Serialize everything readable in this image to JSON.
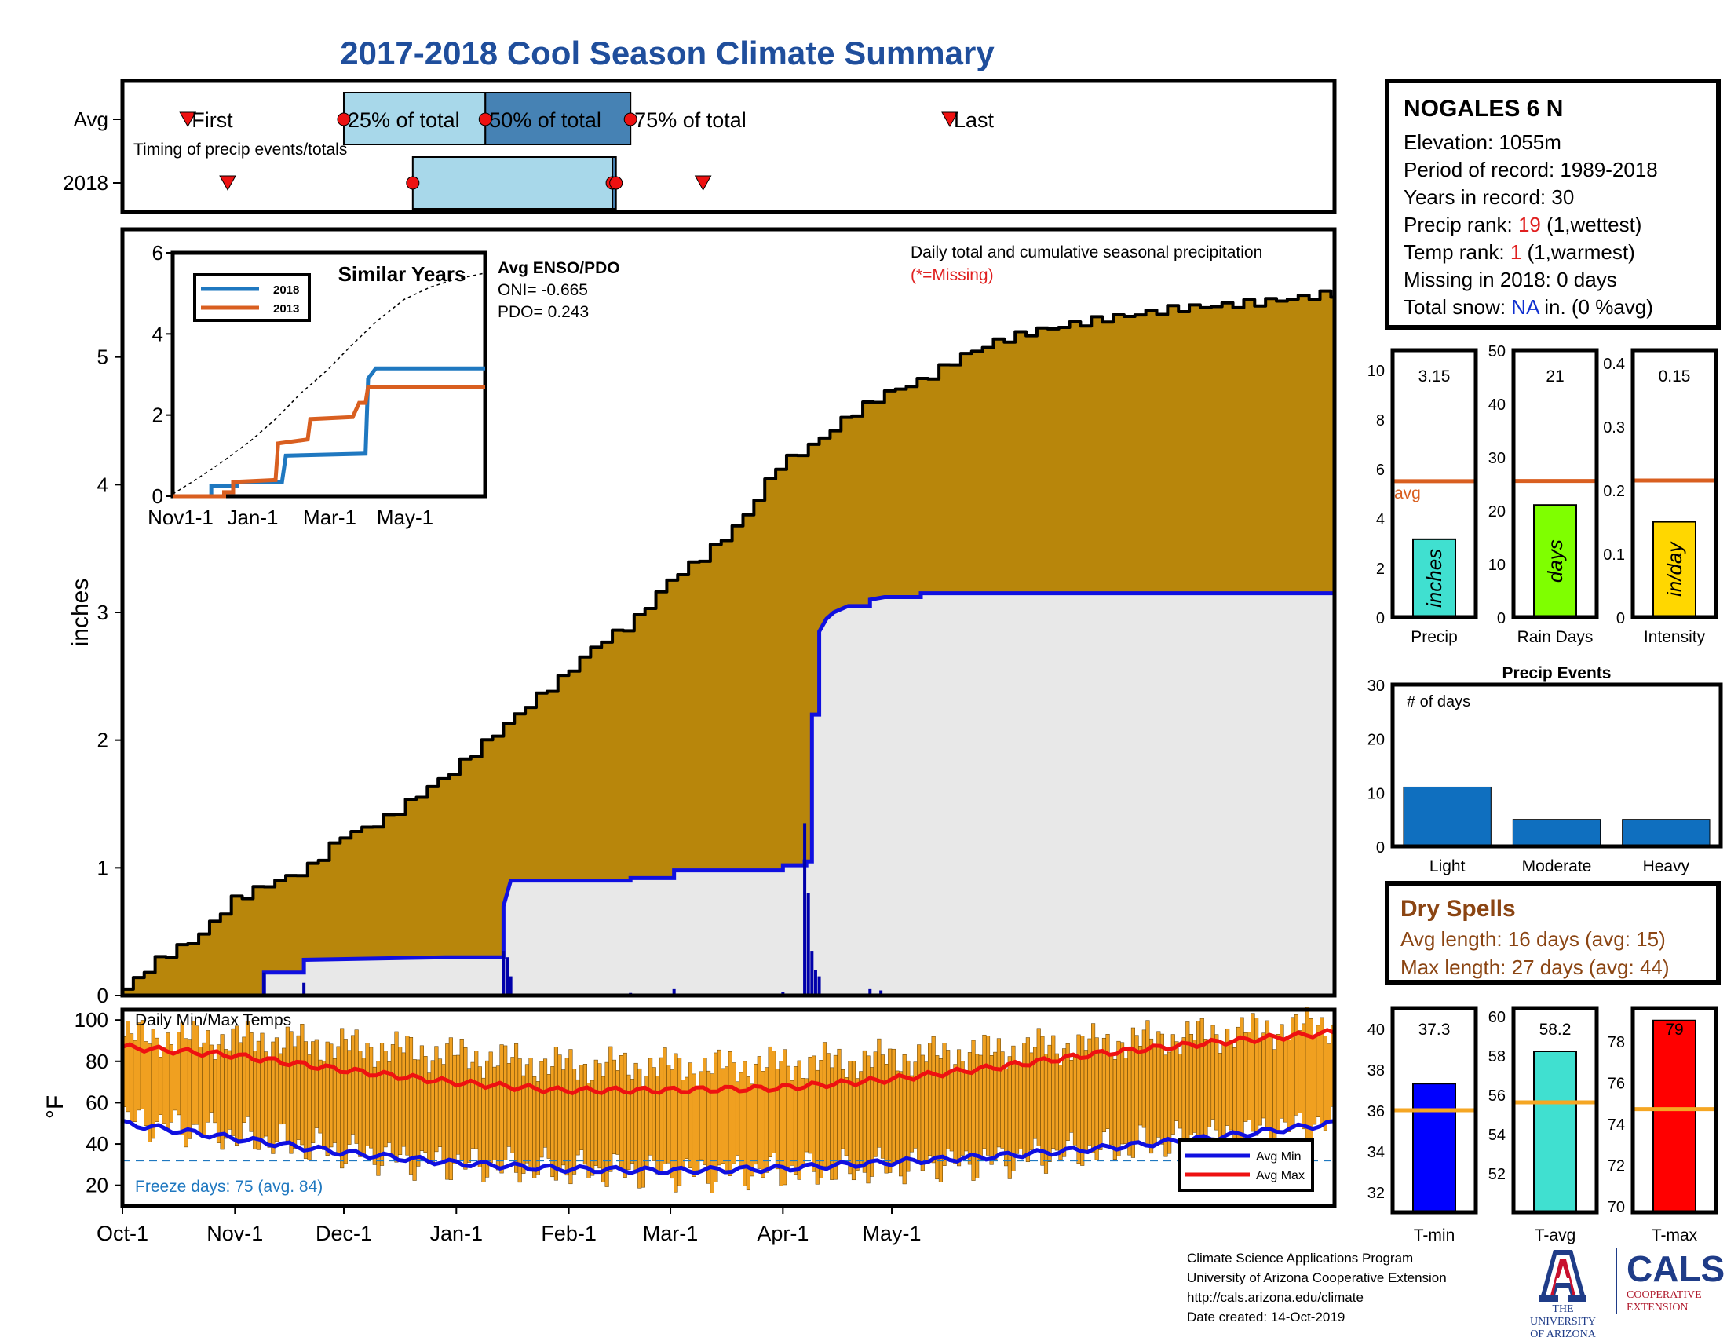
{
  "title": "2017-2018 Cool Season Climate Summary",
  "station": {
    "name": "NOGALES 6 N",
    "elevation": "Elevation: 1055m",
    "period": "Period of record: 1989-2018",
    "years": "Years in record: 30",
    "precip_rank_label": "Precip rank: ",
    "precip_rank_value": "19",
    "precip_rank_note": " (1,wettest)",
    "temp_rank_label": "Temp rank: ",
    "temp_rank_value": "1",
    "temp_rank_note": " (1,warmest)",
    "missing": "Missing in 2018: 0 days",
    "snow_label": "Total snow: ",
    "snow_value": "NA",
    "snow_note": " in. (0 %avg)"
  },
  "dry_spells": {
    "title": "Dry Spells",
    "avg": "Avg length: 16 days (avg: 15)",
    "max": "Max length: 27 days (avg: 44)"
  },
  "footer": {
    "line1": "Climate Science Applications Program",
    "line2": "University of Arizona Cooperative Extension",
    "line3": "http://cals.arizona.edu/climate",
    "line4": " Date created: 14-Oct-2019"
  },
  "logos": {
    "ua_text1": "THE UNIVERSITY",
    "ua_text2": "OF ARIZONA",
    "ua_icon": "university-of-arizona-block-a",
    "cals_name": "CALS",
    "cals_sub1": "COOPERATIVE",
    "cals_sub2": "EXTENSION"
  },
  "colors": {
    "cumulative_fill": "#b8860b",
    "daily_fill": "#e8e8e8",
    "seasonal_line": "#1010e0",
    "temp_bar": "#f0a020",
    "avg_min": "#1010e0",
    "avg_max": "#ee1111",
    "freeze_line": "#1f78c0",
    "line_2018": "#1f78c0",
    "line_2013": "#d95f20",
    "avg_line": "#d95f20",
    "event_bar": "#0f6fbf"
  },
  "chart_data": [
    {
      "id": "timing",
      "type": "timeline",
      "row_labels": [
        "Avg",
        "2018"
      ],
      "note": "Timing of precip events/totals",
      "avg": {
        "first": "Oct-19",
        "p25": "Dec-1",
        "p50": "Jan-9",
        "p75": "Feb-18",
        "last": "May-17"
      },
      "y2018": {
        "first": "Oct-30",
        "p25": "Dec-20",
        "p50": "Feb-13",
        "p75": "Feb-14",
        "last": "Mar-10"
      },
      "avg_labels": [
        "First",
        "25% of total",
        "50% of total",
        "75% of total",
        "Last"
      ]
    },
    {
      "id": "precipitation",
      "type": "area",
      "title": "Daily total and cumulative seasonal precipitation",
      "subtitle": "(*=Missing)",
      "ylabel": "inches",
      "ylim": [
        0,
        6
      ],
      "yticks": [
        0,
        1,
        2,
        3,
        4,
        5
      ],
      "xticks": [
        "Oct-1",
        "Nov-1",
        "Dec-1",
        "Jan-1",
        "Feb-1",
        "Mar-1",
        "Apr-1",
        "May-1"
      ],
      "avg_cumulative": [
        [
          0,
          0.05
        ],
        [
          5,
          0.18
        ],
        [
          10,
          0.3
        ],
        [
          20,
          0.45
        ],
        [
          30,
          0.75
        ],
        [
          40,
          0.88
        ],
        [
          50,
          0.98
        ],
        [
          60,
          1.25
        ],
        [
          70,
          1.35
        ],
        [
          80,
          1.55
        ],
        [
          90,
          1.75
        ],
        [
          100,
          2.0
        ],
        [
          110,
          2.25
        ],
        [
          120,
          2.48
        ],
        [
          130,
          2.75
        ],
        [
          140,
          2.92
        ],
        [
          150,
          3.25
        ],
        [
          160,
          3.45
        ],
        [
          170,
          3.72
        ],
        [
          180,
          4.15
        ],
        [
          190,
          4.32
        ],
        [
          200,
          4.55
        ],
        [
          210,
          4.72
        ],
        [
          220,
          4.82
        ],
        [
          230,
          5.0
        ],
        [
          240,
          5.12
        ],
        [
          250,
          5.2
        ],
        [
          260,
          5.25
        ],
        [
          270,
          5.3
        ],
        [
          290,
          5.38
        ],
        [
          310,
          5.42
        ],
        [
          334,
          5.5
        ]
      ],
      "seasonal_2018": [
        [
          0,
          0
        ],
        [
          39,
          0
        ],
        [
          39,
          0.18
        ],
        [
          50,
          0.18
        ],
        [
          50,
          0.28
        ],
        [
          89,
          0.3
        ],
        [
          105,
          0.3
        ],
        [
          105,
          0.7
        ],
        [
          107,
          0.9
        ],
        [
          140,
          0.9
        ],
        [
          140,
          0.92
        ],
        [
          152,
          0.92
        ],
        [
          152,
          0.98
        ],
        [
          182,
          0.98
        ],
        [
          182,
          1.02
        ],
        [
          189,
          1.02
        ],
        [
          189,
          1.02
        ],
        [
          189,
          1.02
        ],
        [
          188,
          1.02
        ],
        [
          188,
          1.05
        ],
        [
          190,
          1.05
        ],
        [
          190,
          2.2
        ],
        [
          192,
          2.2
        ],
        [
          192,
          2.85
        ],
        [
          194,
          2.95
        ],
        [
          196,
          3.0
        ],
        [
          200,
          3.05
        ],
        [
          206,
          3.05
        ],
        [
          206,
          3.1
        ],
        [
          210,
          3.12
        ],
        [
          220,
          3.12
        ],
        [
          220,
          3.15
        ],
        [
          334,
          3.15
        ]
      ],
      "daily_2018": [
        [
          39,
          0.18
        ],
        [
          50,
          0.1
        ],
        [
          105,
          0.35
        ],
        [
          106,
          0.3
        ],
        [
          107,
          0.15
        ],
        [
          140,
          0.02
        ],
        [
          152,
          0.05
        ],
        [
          182,
          0.03
        ],
        [
          188,
          1.35
        ],
        [
          189,
          0.8
        ],
        [
          190,
          0.35
        ],
        [
          191,
          0.2
        ],
        [
          192,
          0.15
        ],
        [
          206,
          0.05
        ],
        [
          209,
          0.04
        ]
      ]
    },
    {
      "id": "similar_years",
      "type": "line",
      "title": "Similar Years",
      "ylim": [
        0,
        6
      ],
      "yticks": [
        0,
        2,
        4,
        6
      ],
      "xticks": [
        "Nov1-1",
        "Jan-1",
        "Mar-1",
        "May-1"
      ],
      "series": [
        {
          "name": "2018",
          "points": [
            [
              0,
              0
            ],
            [
              30,
              0
            ],
            [
              30,
              0.25
            ],
            [
              50,
              0.25
            ],
            [
              50,
              0.35
            ],
            [
              85,
              0.35
            ],
            [
              88,
              1.0
            ],
            [
              150,
              1.05
            ],
            [
              152,
              2.9
            ],
            [
              158,
              3.15
            ],
            [
              243,
              3.15
            ]
          ]
        },
        {
          "name": "2013",
          "points": [
            [
              0,
              0
            ],
            [
              40,
              0
            ],
            [
              40,
              0.1
            ],
            [
              47,
              0.1
            ],
            [
              47,
              0.35
            ],
            [
              80,
              0.4
            ],
            [
              82,
              1.3
            ],
            [
              105,
              1.4
            ],
            [
              107,
              1.9
            ],
            [
              140,
              1.95
            ],
            [
              145,
              2.3
            ],
            [
              150,
              2.3
            ],
            [
              152,
              2.7
            ],
            [
              243,
              2.7
            ]
          ]
        },
        {
          "name": "avg",
          "points": [
            [
              0,
              0.05
            ],
            [
              20,
              0.45
            ],
            [
              40,
              0.88
            ],
            [
              60,
              1.35
            ],
            [
              80,
              1.9
            ],
            [
              100,
              2.55
            ],
            [
              120,
              3.1
            ],
            [
              140,
              3.75
            ],
            [
              160,
              4.35
            ],
            [
              180,
              4.85
            ],
            [
              200,
              5.15
            ],
            [
              220,
              5.35
            ],
            [
              243,
              5.5
            ]
          ]
        }
      ],
      "enso_title": "Avg ENSO/PDO",
      "oni": "ONI= -0.665",
      "pdo": "PDO= 0.243"
    },
    {
      "id": "temperature",
      "type": "bar",
      "title": "Daily Min/Max Temps",
      "ylabel": "°F",
      "ylim": [
        10,
        105
      ],
      "yticks": [
        20,
        40,
        60,
        80,
        100
      ],
      "freeze_line": 32,
      "freeze_note": "Freeze days: 75 (avg. 84)",
      "legend": [
        "Avg Min",
        "Avg Max"
      ],
      "avg_max": [
        [
          0,
          87
        ],
        [
          30,
          83
        ],
        [
          60,
          76
        ],
        [
          90,
          70
        ],
        [
          120,
          66
        ],
        [
          150,
          66
        ],
        [
          180,
          67
        ],
        [
          210,
          71
        ],
        [
          240,
          77
        ],
        [
          270,
          84
        ],
        [
          300,
          89
        ],
        [
          334,
          94
        ]
      ],
      "avg_min": [
        [
          0,
          50
        ],
        [
          30,
          43
        ],
        [
          60,
          36
        ],
        [
          90,
          31
        ],
        [
          120,
          28
        ],
        [
          150,
          27
        ],
        [
          180,
          28
        ],
        [
          210,
          31
        ],
        [
          240,
          34
        ],
        [
          270,
          38
        ],
        [
          300,
          43
        ],
        [
          334,
          50
        ]
      ],
      "daily_range_top": [
        [
          0,
          92
        ],
        [
          40,
          90
        ],
        [
          80,
          85
        ],
        [
          120,
          78
        ],
        [
          160,
          77
        ],
        [
          200,
          80
        ],
        [
          240,
          85
        ],
        [
          280,
          90
        ],
        [
          334,
          98
        ]
      ],
      "daily_range_bottom": [
        [
          0,
          52
        ],
        [
          40,
          42
        ],
        [
          80,
          32
        ],
        [
          120,
          28
        ],
        [
          160,
          26
        ],
        [
          200,
          28
        ],
        [
          240,
          32
        ],
        [
          280,
          40
        ],
        [
          334,
          50
        ]
      ]
    },
    {
      "id": "precip_stats",
      "type": "bar",
      "panels": [
        {
          "name": "Precip",
          "value": 3.15,
          "value_label": "3.15",
          "avg": 5.5,
          "ylim": [
            0,
            10.8
          ],
          "yticks": [
            0,
            2,
            4,
            6,
            8,
            10
          ],
          "bar_label": "inches",
          "color": "#40e0d0",
          "avg_label": "avg"
        },
        {
          "name": "Rain Days",
          "value": 21,
          "value_label": "21",
          "avg": 25.5,
          "ylim": [
            0,
            50
          ],
          "yticks": [
            0,
            10,
            20,
            30,
            40,
            50
          ],
          "bar_label": "days",
          "color": "#7fff00"
        },
        {
          "name": "Intensity",
          "value": 0.15,
          "value_label": "0.15",
          "avg": 0.215,
          "ylim": [
            0,
            0.42
          ],
          "yticks": [
            0,
            0.1,
            0.2,
            0.3,
            0.4
          ],
          "bar_label": "in/day",
          "color": "#ffd700"
        }
      ]
    },
    {
      "id": "precip_events",
      "type": "bar",
      "title": "Precip Events",
      "inner_label": "# of days",
      "categories": [
        "Light",
        "Moderate",
        "Heavy"
      ],
      "values": [
        11,
        5,
        5
      ],
      "ylim": [
        0,
        30
      ],
      "yticks": [
        0,
        10,
        20,
        30
      ]
    },
    {
      "id": "temp_stats",
      "type": "bar",
      "panels": [
        {
          "name": "T-min",
          "value": 37.3,
          "value_label": "37.3",
          "avg": 36.0,
          "ylim": [
            31,
            41
          ],
          "yticks": [
            32,
            34,
            36,
            38,
            40
          ],
          "color": "#0000ff"
        },
        {
          "name": "T-avg",
          "value": 58.2,
          "value_label": "58.2",
          "avg": 55.6,
          "ylim": [
            50,
            60.4
          ],
          "yticks": [
            52,
            54,
            56,
            58,
            60
          ],
          "color": "#40e0d0"
        },
        {
          "name": "T-max",
          "value": 79.0,
          "value_label": "79",
          "avg": 74.7,
          "ylim": [
            69.7,
            79.6
          ],
          "yticks": [
            70,
            72,
            74,
            76,
            78
          ],
          "color": "#ff0000"
        }
      ]
    }
  ]
}
